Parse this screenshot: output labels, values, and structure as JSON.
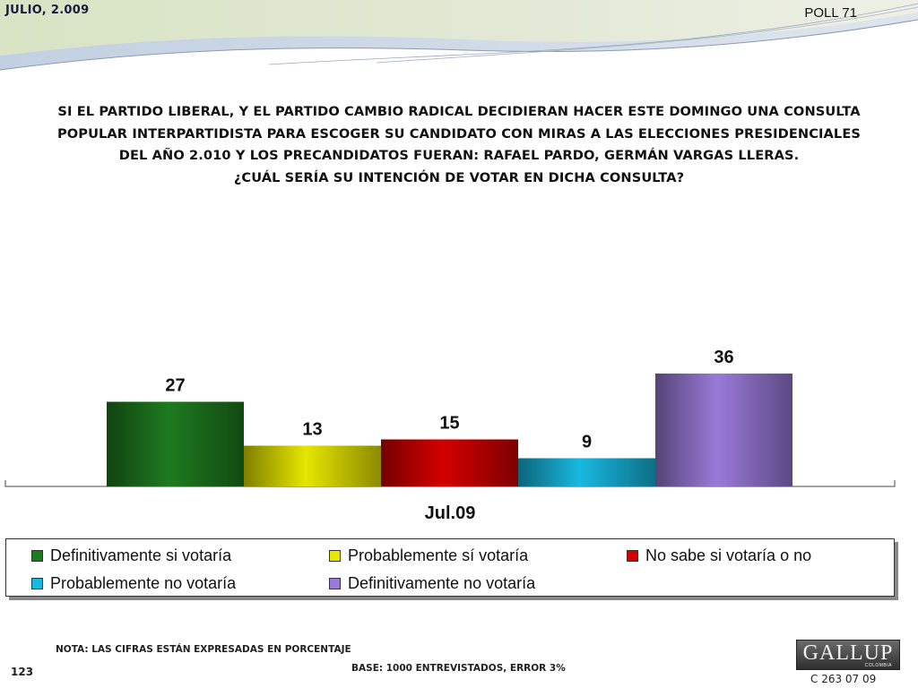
{
  "header": {
    "date": "JULIO, 2.009",
    "poll": "POLL 71"
  },
  "question": {
    "line1": "SI EL PARTIDO LIBERAL, Y EL PARTIDO CAMBIO RADICAL DECIDIERAN HACER ESTE DOMINGO UNA CONSULTA",
    "line2": "POPULAR INTERPARTIDISTA  PARA ESCOGER SU CANDIDATO CON MIRAS A LAS ELECCIONES PRESIDENCIALES",
    "line3": "DEL AÑO 2.010 Y LOS PRECANDIDATOS FUERAN: RAFAEL PARDO, GERMÁN VARGAS LLERAS.",
    "line4": "¿CUÁL SERÍA SU INTENCIÓN DE VOTAR EN DICHA CONSULTA?"
  },
  "chart_data": {
    "type": "bar",
    "categories": [
      "Jul.09"
    ],
    "series": [
      {
        "name": "Definitivamente si votaría",
        "values": [
          27
        ],
        "color": "#1e7a1e"
      },
      {
        "name": "Probablemente sí votaría",
        "values": [
          13
        ],
        "color": "#e6e600"
      },
      {
        "name": "No sabe si votaría o no",
        "values": [
          15
        ],
        "color": "#d40000"
      },
      {
        "name": "Probablemente no votaría",
        "values": [
          9
        ],
        "color": "#18b8e0"
      },
      {
        "name": "Definitivamente no votaría",
        "values": [
          36
        ],
        "color": "#9a7ad8"
      }
    ],
    "grid": false,
    "legend": "bottom",
    "ylim": [
      0,
      40
    ]
  },
  "legend": {
    "items": [
      "Definitivamente si votaría",
      "Probablemente sí votaría",
      "No sabe si votaría o no",
      "Probablemente no votaría",
      "Definitivamente no votaría"
    ]
  },
  "footer": {
    "note": "NOTA: LAS CIFRAS ESTÁN EXPRESADAS EN PORCENTAJE",
    "base": "BASE: 1000 ENTREVISTADOS, ERROR 3%",
    "page_number": "123",
    "code": "C 263 07 09"
  },
  "logo": {
    "main": "GALLUP",
    "sub": "COLOMBIA"
  }
}
